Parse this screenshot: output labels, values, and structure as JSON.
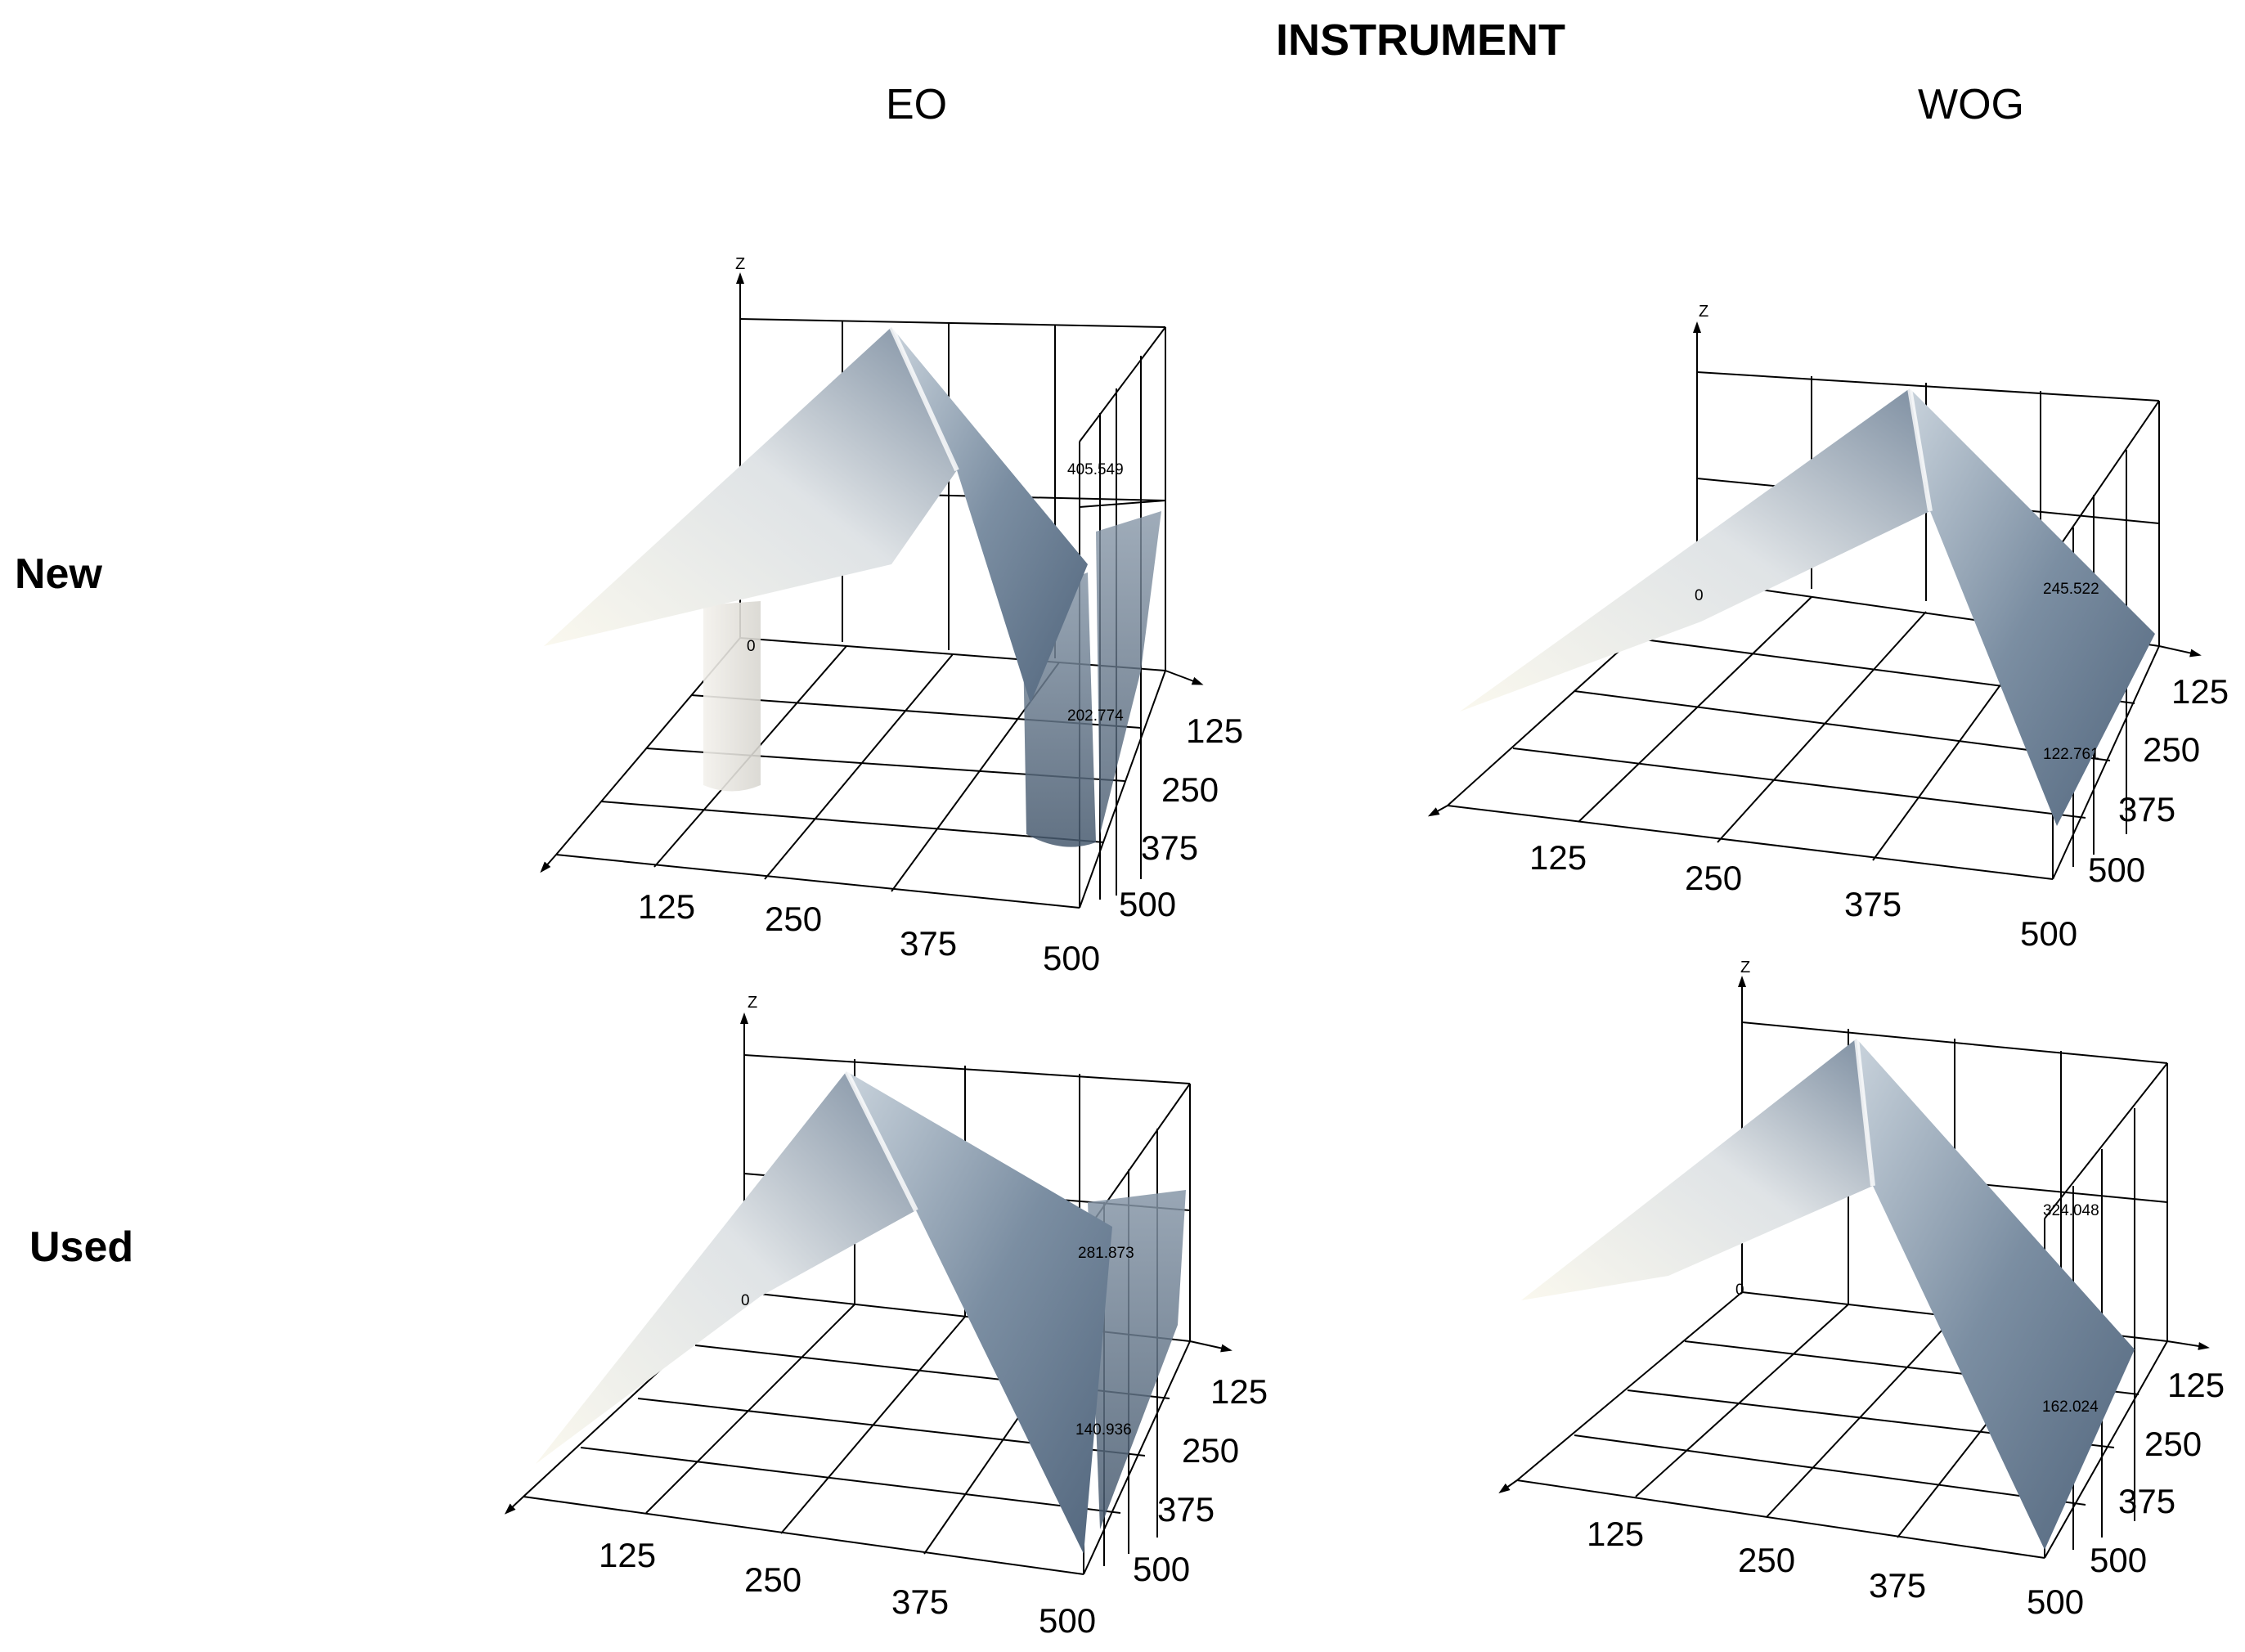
{
  "figure": {
    "title": "INSTRUMENT",
    "columns": [
      "EO",
      "WOG"
    ],
    "rows": [
      "New",
      "Used"
    ]
  },
  "axis_label": "Z",
  "tick_labels": [
    "125",
    "250",
    "375",
    "500"
  ],
  "panels": [
    {
      "id": "new-eo",
      "row": "New",
      "column": "EO",
      "zero_label": "0",
      "z_upper": "405.549",
      "z_lower": "202.774"
    },
    {
      "id": "new-wog",
      "row": "New",
      "column": "WOG",
      "zero_label": "0",
      "z_upper": "245.522",
      "z_lower": "122.761"
    },
    {
      "id": "used-eo",
      "row": "Used",
      "column": "EO",
      "zero_label": "0",
      "z_upper": "281.873",
      "z_lower": "140.936"
    },
    {
      "id": "used-wog",
      "row": "Used",
      "column": "WOG",
      "zero_label": "0",
      "z_upper": "324.048",
      "z_lower": "162.024"
    }
  ],
  "colors": {
    "surface_light": "#f4f2ea",
    "surface_dark": "#5a6e84",
    "grid": "#000000"
  }
}
